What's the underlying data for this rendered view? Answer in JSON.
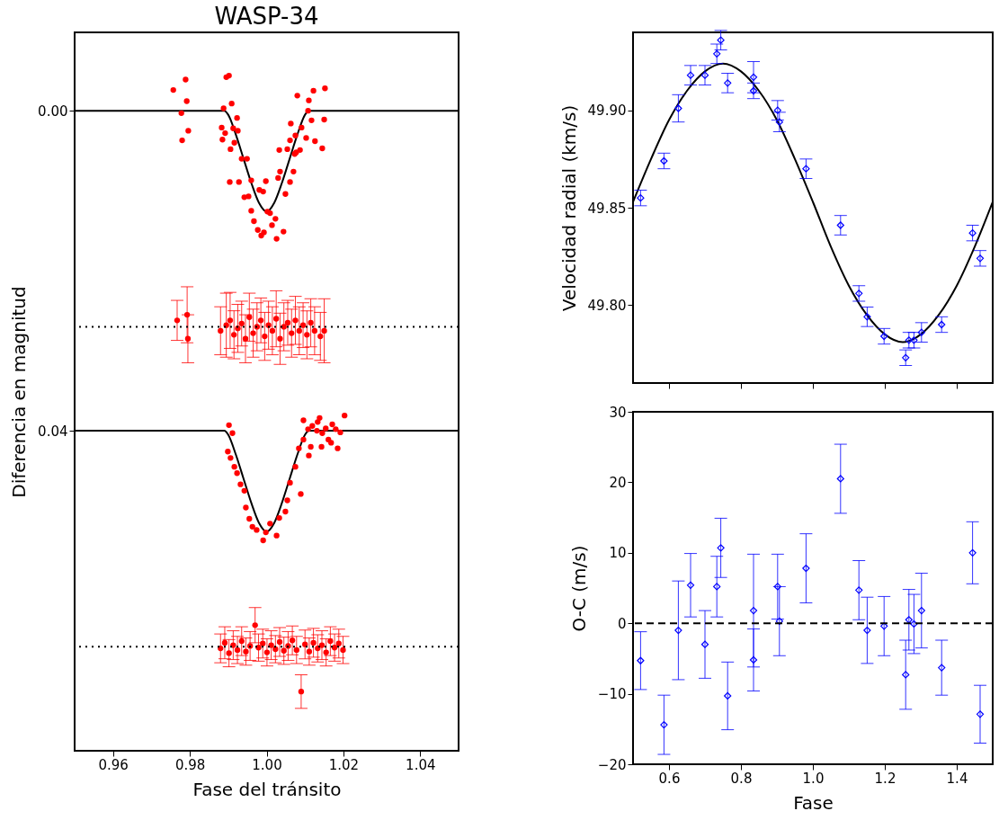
{
  "chart_data": [
    {
      "type": "scatter",
      "title": "WASP-34",
      "xlabel": "Fase del tránsito",
      "ylabel": "Diferencia en magnitud",
      "xlim": [
        0.95,
        1.05
      ],
      "ylim": [
        0.08,
        -0.0098
      ],
      "xticks": [
        0.96,
        0.98,
        {
          "value": 1.0,
          "label": "1.00"
        },
        1.02,
        1.04
      ],
      "yticks": [
        {
          "value": 0,
          "label": "0.00"
        },
        0.04
      ],
      "grid": false,
      "ref_lines": [
        {
          "axis": "y",
          "value": 0.027,
          "line_style": "dotted",
          "color": "#000000"
        },
        {
          "axis": "y",
          "value": 0.067,
          "line_style": "dotted",
          "color": "#000000"
        }
      ],
      "series": [
        {
          "type": "line",
          "color": "#000000",
          "line_style": "solid",
          "marker": "none",
          "x": [
            0.95,
            0.989,
            0.99,
            0.992,
            0.994,
            0.996,
            0.998,
            1.0,
            1.002,
            1.004,
            1.006,
            1.008,
            1.01,
            1.011,
            1.05
          ],
          "values": [
            0,
            0,
            0.0005,
            0.003,
            0.006,
            0.009,
            0.0115,
            0.0126,
            0.0115,
            0.009,
            0.006,
            0.003,
            0.0005,
            0,
            0
          ]
        },
        {
          "type": "scatter",
          "color": "#ff0000",
          "marker": "circle",
          "x": [
            0.9757,
            0.9789,
            0.9792,
            0.9778,
            0.9796,
            0.978,
            0.9895,
            0.9902,
            0.9909,
            0.9888,
            0.9883,
            0.9892,
            0.9923,
            0.9913,
            0.9925,
            0.9885,
            0.9916,
            0.9906,
            0.9935,
            0.9949,
            0.9904,
            0.9928,
            0.996,
            0.9942,
            0.9953,
            0.996,
            0.9981,
            0.9998,
            0.9991,
            0.9967,
            0.9977,
            0.9986,
            0.9993,
            1.0002,
            1.0009,
            1.0014,
            1.0023,
            1.0026,
            1.0044,
            1.003,
            1.0035,
            1.0049,
            1.0061,
            1.0033,
            1.0054,
            1.0061,
            1.007,
            1.0073,
            1.0077,
            1.0087,
            1.0063,
            1.0075,
            1.0091,
            1.0103,
            1.0126,
            1.0108,
            1.0117,
            1.008,
            1.011,
            1.0122,
            1.0152,
            1.015,
            1.0145
          ],
          "values": [
            -0.0026,
            -0.0039,
            -0.0012,
            0.0003,
            0.0025,
            0.0037,
            -0.0042,
            -0.0044,
            -0.0009,
            -0.0003,
            0.0021,
            0.0028,
            0.0009,
            0.0022,
            0.0025,
            0.0036,
            0.004,
            0.0048,
            0.006,
            0.006,
            0.0089,
            0.0089,
            0.0087,
            0.0108,
            0.0107,
            0.0125,
            0.0099,
            0.0088,
            0.0101,
            0.0138,
            0.0149,
            0.0156,
            0.0152,
            0.0126,
            0.0128,
            0.0143,
            0.0135,
            0.016,
            0.0151,
            0.0084,
            0.0076,
            0.0104,
            0.0089,
            0.0049,
            0.0048,
            0.0037,
            0.0076,
            0.0054,
            0.0052,
            0.0049,
            0.0016,
            0.0031,
            0.0021,
            0.0034,
            0.0038,
            0.0,
            0.0012,
            -0.0019,
            -0.0013,
            -0.0025,
            -0.0028,
            0.0011,
            0.0047
          ]
        },
        {
          "type": "scatter",
          "color": "#ff0000",
          "marker": "circle",
          "x": [
            0.9767,
            0.9793,
            0.9795,
            0.988,
            0.9895,
            0.9905,
            0.9915,
            0.9925,
            0.9935,
            0.9945,
            0.9955,
            0.9965,
            0.9975,
            0.9985,
            0.9995,
            1.0005,
            1.0015,
            1.0025,
            1.0035,
            1.0045,
            1.0055,
            1.0065,
            1.0075,
            1.0085,
            1.0095,
            1.0105,
            1.0115,
            1.0125,
            1.014,
            1.015
          ],
          "values": [
            0.0262,
            0.0255,
            0.0285,
            0.0275,
            0.0268,
            0.0262,
            0.028,
            0.0272,
            0.0266,
            0.0285,
            0.0258,
            0.0278,
            0.027,
            0.0262,
            0.0282,
            0.0268,
            0.0275,
            0.026,
            0.0285,
            0.027,
            0.0265,
            0.0278,
            0.0262,
            0.0275,
            0.0268,
            0.028,
            0.0265,
            0.0275,
            0.0282,
            0.0275
          ],
          "errors": [
            0.0025,
            0.0035,
            0.003,
            0.003,
            0.004,
            0.0035,
            0.003,
            0.003,
            0.0028,
            0.003,
            0.003,
            0.003,
            0.003,
            0.0028,
            0.003,
            0.003,
            0.003,
            0.0035,
            0.0032,
            0.003,
            0.0028,
            0.003,
            0.003,
            0.003,
            0.0028,
            0.003,
            0.003,
            0.003,
            0.003,
            0.004
          ]
        },
        {
          "type": "line",
          "color": "#000000",
          "line_style": "solid",
          "marker": "none",
          "x": [
            0.95,
            0.989,
            0.99,
            0.992,
            0.994,
            0.996,
            0.998,
            1.0,
            1.002,
            1.004,
            1.006,
            1.008,
            1.01,
            1.011,
            1.05
          ],
          "values": [
            0.04,
            0.04,
            0.0405,
            0.043,
            0.046,
            0.049,
            0.0515,
            0.0526,
            0.0515,
            0.049,
            0.046,
            0.043,
            0.0405,
            0.04,
            0.04
          ]
        },
        {
          "type": "scatter",
          "color": "#ff0000",
          "marker": "circle",
          "x": [
            0.9902,
            0.9911,
            0.9899,
            0.9906,
            0.9916,
            0.9923,
            0.9932,
            0.9942,
            0.9946,
            0.9955,
            0.9963,
            0.9974,
            0.9991,
            0.9998,
            1.0009,
            1.0026,
            1.0033,
            1.0049,
            1.0054,
            1.0061,
            1.0075,
            1.0089,
            1.0084,
            1.0096,
            1.011,
            1.0115,
            1.0096,
            1.0108,
            1.0119,
            1.0133,
            1.0138,
            1.0145,
            1.0143,
            1.0154,
            1.0161,
            1.0168,
            1.0171,
            1.018,
            1.0185,
            1.0192,
            1.0203,
            1.0131
          ],
          "values": [
            0.0393,
            0.0403,
            0.0426,
            0.0434,
            0.0445,
            0.0453,
            0.0467,
            0.0475,
            0.0496,
            0.051,
            0.052,
            0.0524,
            0.0537,
            0.0527,
            0.0516,
            0.0531,
            0.0509,
            0.0501,
            0.0487,
            0.0465,
            0.0445,
            0.0479,
            0.0422,
            0.0411,
            0.0431,
            0.042,
            0.0387,
            0.0398,
            0.0394,
            0.0389,
            0.0384,
            0.0403,
            0.042,
            0.0397,
            0.0411,
            0.0415,
            0.0392,
            0.0398,
            0.0422,
            0.0402,
            0.0381,
            0.04
          ]
        },
        {
          "type": "scatter",
          "color": "#ff0000",
          "marker": "circle",
          "x": [
            0.988,
            0.9891,
            0.9902,
            0.9913,
            0.9924,
            0.9935,
            0.9946,
            0.9957,
            0.997,
            0.9979,
            0.999,
            1.0001,
            1.0012,
            1.0023,
            1.0034,
            1.0045,
            1.0056,
            1.0067,
            1.0078,
            1.009,
            1.01,
            1.0111,
            1.0122,
            1.0133,
            1.0144,
            1.0155,
            1.0166,
            1.0177,
            1.0188,
            1.0199
          ],
          "values": [
            0.0672,
            0.0665,
            0.0678,
            0.0668,
            0.0674,
            0.0663,
            0.0676,
            0.0669,
            0.0643,
            0.0671,
            0.0666,
            0.0677,
            0.0668,
            0.0673,
            0.0664,
            0.0675,
            0.0669,
            0.0662,
            0.0674,
            0.0726,
            0.0667,
            0.0676,
            0.0665,
            0.0672,
            0.0668,
            0.0677,
            0.0663,
            0.0671,
            0.0666,
            0.0674
          ],
          "errors": [
            0.0018,
            0.002,
            0.0017,
            0.0018,
            0.0017,
            0.0018,
            0.0017,
            0.0018,
            0.0022,
            0.0017,
            0.0018,
            0.0017,
            0.0018,
            0.0017,
            0.0018,
            0.0017,
            0.0018,
            0.0018,
            0.0017,
            0.0021,
            0.0018,
            0.0017,
            0.0018,
            0.0017,
            0.0018,
            0.0017,
            0.0018,
            0.0017,
            0.0018,
            0.0017
          ]
        }
      ]
    },
    {
      "type": "scatter",
      "ylabel": "Velocidad radial (km/s)",
      "xlim": [
        0.5,
        1.5
      ],
      "ylim": [
        49.76,
        49.94
      ],
      "xticks": [
        0.6,
        0.8,
        1.0,
        1.2,
        1.4
      ],
      "yticks": [
        {
          "value": 49.8,
          "label": "49.80"
        },
        49.85,
        {
          "value": 49.9,
          "label": "49.90"
        }
      ],
      "tick_labels": "y",
      "grid": false,
      "series": [
        {
          "type": "line",
          "color": "#000000",
          "line_style": "solid",
          "marker": "none",
          "x": [
            0.5,
            0.55,
            0.6,
            0.65,
            0.7,
            0.75,
            0.8,
            0.85,
            0.9,
            0.95,
            1.0,
            1.05,
            1.1,
            1.15,
            1.2,
            1.25,
            1.3,
            1.35,
            1.4,
            1.45,
            1.5
          ],
          "values": [
            49.853,
            49.875,
            49.895,
            49.91,
            49.92,
            49.924,
            49.92,
            49.91,
            49.895,
            49.875,
            49.853,
            49.83,
            49.81,
            49.795,
            49.785,
            49.781,
            49.785,
            49.795,
            49.81,
            49.83,
            49.853
          ]
        },
        {
          "type": "scatter",
          "color": "#0000ff",
          "marker": "diamond",
          "x": [
            0.521,
            0.586,
            0.626,
            0.66,
            0.7,
            0.733,
            0.744,
            0.763,
            0.835,
            0.835,
            0.902,
            0.907,
            0.981,
            1.077,
            1.128,
            1.151,
            1.198,
            1.258,
            1.267,
            1.281,
            1.302,
            1.358,
            1.444,
            1.465
          ],
          "values": [
            49.855,
            49.874,
            49.901,
            49.918,
            49.918,
            49.929,
            49.936,
            49.914,
            49.917,
            49.91,
            49.9,
            49.894,
            49.87,
            49.841,
            49.806,
            49.794,
            49.784,
            49.773,
            49.782,
            49.782,
            49.786,
            49.79,
            49.837,
            49.824
          ],
          "errors": [
            0.004,
            0.004,
            0.007,
            0.005,
            0.005,
            0.005,
            0.005,
            0.005,
            0.008,
            0.004,
            0.005,
            0.005,
            0.005,
            0.005,
            0.004,
            0.005,
            0.004,
            0.004,
            0.004,
            0.004,
            0.005,
            0.004,
            0.004,
            0.004
          ]
        }
      ]
    },
    {
      "type": "scatter",
      "xlabel": "Fase",
      "ylabel": "O-C (m/s)",
      "xlim": [
        0.5,
        1.5
      ],
      "ylim": [
        -20,
        30
      ],
      "xticks": [
        0.6,
        0.8,
        {
          "value": 1.0,
          "label": "1.0"
        },
        1.2,
        1.4
      ],
      "yticks": [
        -20,
        -10,
        0,
        10,
        20,
        30
      ],
      "grid": false,
      "ref_lines": [
        {
          "axis": "y",
          "value": 0,
          "line_style": "dashed",
          "color": "#000000"
        }
      ],
      "series": [
        {
          "type": "scatter",
          "color": "#0000ff",
          "marker": "diamond",
          "x": [
            0.521,
            0.586,
            0.626,
            0.66,
            0.7,
            0.733,
            0.744,
            0.763,
            0.835,
            0.835,
            0.902,
            0.907,
            0.981,
            1.077,
            1.128,
            1.151,
            1.198,
            1.258,
            1.267,
            1.281,
            1.302,
            1.358,
            1.444,
            1.465
          ],
          "values": [
            -5.3,
            -14.4,
            -1.0,
            5.4,
            -3.0,
            5.2,
            10.7,
            -10.3,
            1.8,
            -5.2,
            5.2,
            0.3,
            7.8,
            20.5,
            4.7,
            -1.0,
            -0.4,
            -7.3,
            0.5,
            -0.1,
            1.8,
            -6.3,
            10.0,
            -12.9
          ],
          "errors": [
            4.1,
            4.2,
            7.0,
            4.5,
            4.8,
            4.3,
            4.2,
            4.8,
            8.0,
            4.4,
            4.6,
            4.9,
            4.9,
            4.9,
            4.2,
            4.7,
            4.2,
            4.9,
            4.3,
            4.2,
            5.3,
            3.9,
            4.4,
            4.1
          ]
        }
      ]
    }
  ]
}
